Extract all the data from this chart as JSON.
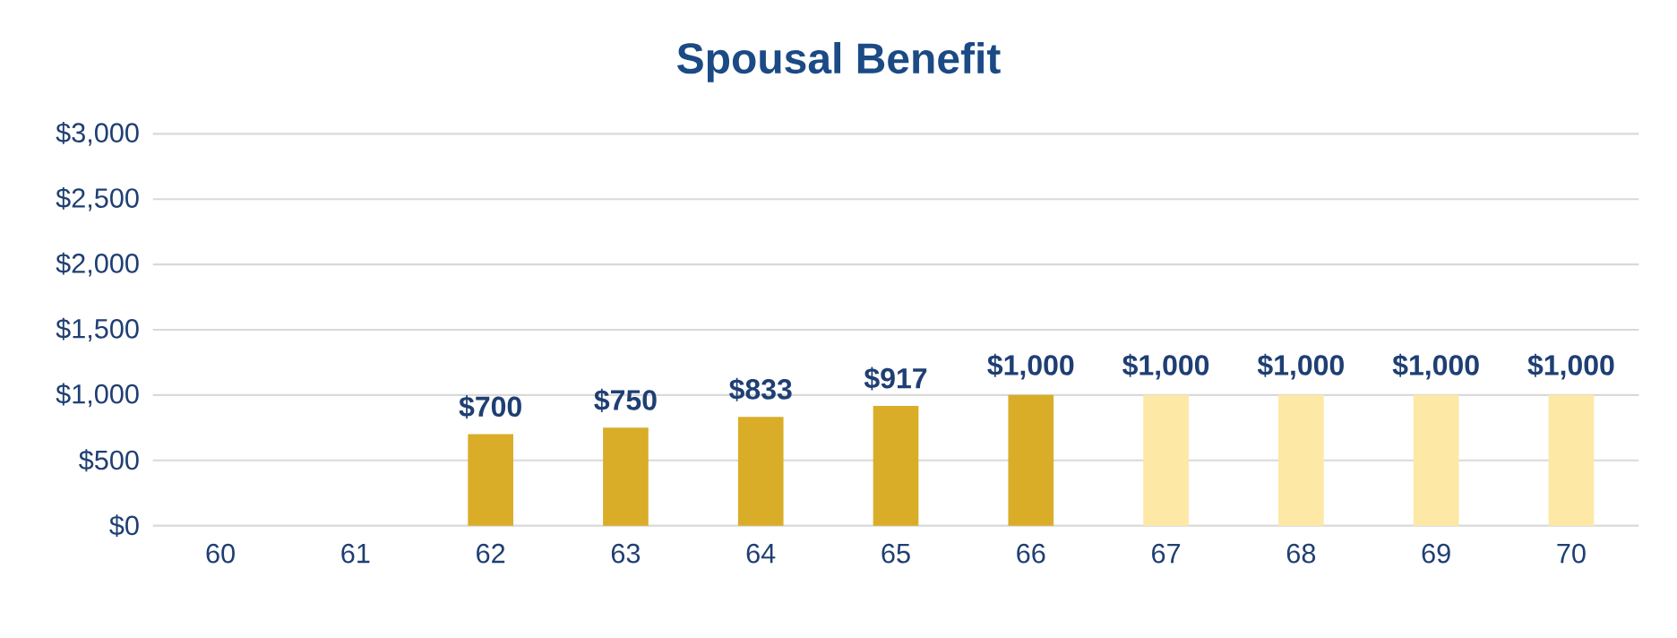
{
  "chart_data": {
    "type": "bar",
    "title": "Spousal Benefit",
    "categories": [
      "60",
      "61",
      "62",
      "63",
      "64",
      "65",
      "66",
      "67",
      "68",
      "69",
      "70"
    ],
    "values": [
      null,
      null,
      700,
      750,
      833,
      917,
      1000,
      1000,
      1000,
      1000,
      1000
    ],
    "colors": [
      "#d9ad28",
      "#d9ad28",
      "#d9ad28",
      "#d9ad28",
      "#d9ad28",
      "#d9ad28",
      "#d9ad28",
      "#fde8a6",
      "#fde8a6",
      "#fde8a6",
      "#fde8a6"
    ],
    "value_labels": [
      null,
      null,
      "$700",
      "$750",
      "$833",
      "$917",
      "$1,000",
      "$1,000",
      "$1,000",
      "$1,000",
      "$1,000"
    ],
    "ylim": [
      0,
      3000
    ],
    "yticks": [
      {
        "value": 0,
        "label": "$0"
      },
      {
        "value": 500,
        "label": "$500"
      },
      {
        "value": 1000,
        "label": "$1,000"
      },
      {
        "value": 1500,
        "label": "$1,500"
      },
      {
        "value": 2000,
        "label": "$2,000"
      },
      {
        "value": 2500,
        "label": "$2,500"
      },
      {
        "value": 3000,
        "label": "$3,000"
      }
    ],
    "grid": "y"
  }
}
